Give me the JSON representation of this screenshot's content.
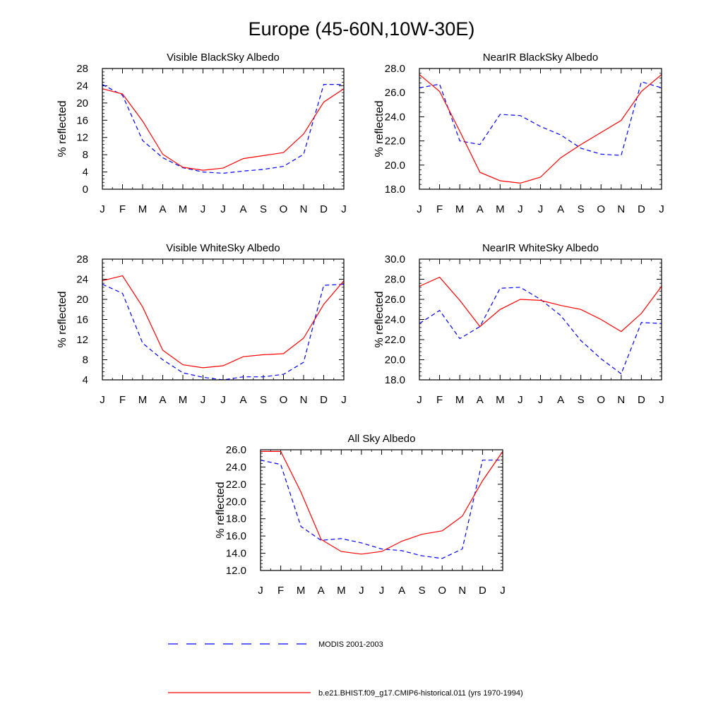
{
  "figure": {
    "title": "Europe (45-60N,10W-30E)"
  },
  "legend": {
    "position": "bottom",
    "entries": [
      {
        "label": "MODIS 2001-2003",
        "color": "#0000ff",
        "dashed": true
      },
      {
        "label": "b.e21.BHIST.f09_g17.CMIP6-historical.011 (yrs 1970-1994)",
        "color": "#ff0000",
        "dashed": false
      }
    ]
  },
  "chart_data": [
    {
      "type": "line",
      "title": "Visible BlackSky Albedo",
      "ylabel": "% reflected",
      "x": [
        "J",
        "F",
        "M",
        "A",
        "M",
        "J",
        "J",
        "A",
        "S",
        "O",
        "N",
        "D",
        "J"
      ],
      "ylim": [
        0,
        28
      ],
      "yticks": [
        "0",
        "4",
        "8",
        "12",
        "16",
        "20",
        "24",
        "28"
      ],
      "series": [
        {
          "name": "MODIS 2001-2003",
          "color": "#0000ff",
          "dashed": true,
          "values": [
            24.3,
            21.8,
            11.3,
            7.3,
            5.0,
            4.0,
            3.7,
            4.2,
            4.6,
            5.3,
            8.1,
            24.3,
            24.3
          ]
        },
        {
          "name": "b.e21.BHIST.f09_g17.CMIP6-historical.011 (yrs 1970-1994)",
          "color": "#ff0000",
          "dashed": false,
          "values": [
            23.3,
            22.1,
            15.8,
            8.1,
            5.1,
            4.4,
            4.9,
            7.1,
            7.8,
            8.5,
            12.8,
            20.2,
            23.3
          ]
        }
      ]
    },
    {
      "type": "line",
      "title": "NearIR BlackSky Albedo",
      "ylabel": "% reflected",
      "x": [
        "J",
        "F",
        "M",
        "A",
        "M",
        "J",
        "J",
        "A",
        "S",
        "O",
        "N",
        "D",
        "J"
      ],
      "ylim": [
        18,
        28
      ],
      "yticks": [
        "18.0",
        "20.0",
        "22.0",
        "24.0",
        "26.0",
        "28.0"
      ],
      "series": [
        {
          "name": "MODIS 2001-2003",
          "color": "#0000ff",
          "dashed": true,
          "values": [
            26.4,
            26.7,
            22.0,
            21.7,
            24.2,
            24.1,
            23.2,
            22.5,
            21.4,
            20.9,
            20.8,
            26.9,
            26.4
          ]
        },
        {
          "name": "b.e21.BHIST.f09_g17.CMIP6-historical.011 (yrs 1970-1994)",
          "color": "#ff0000",
          "dashed": false,
          "values": [
            27.5,
            26.1,
            22.8,
            19.4,
            18.7,
            18.5,
            19.0,
            20.6,
            21.7,
            22.7,
            23.7,
            26.1,
            27.5
          ]
        }
      ]
    },
    {
      "type": "line",
      "title": "Visible WhiteSky Albedo",
      "ylabel": "% reflected",
      "x": [
        "J",
        "F",
        "M",
        "A",
        "M",
        "J",
        "J",
        "A",
        "S",
        "O",
        "N",
        "D",
        "J"
      ],
      "ylim": [
        4,
        28
      ],
      "yticks": [
        "4",
        "8",
        "12",
        "16",
        "20",
        "24",
        "28"
      ],
      "series": [
        {
          "name": "MODIS 2001-2003",
          "color": "#0000ff",
          "dashed": true,
          "values": [
            23.0,
            21.2,
            11.3,
            8.0,
            5.4,
            4.5,
            4.0,
            4.6,
            4.6,
            5.1,
            7.5,
            22.8,
            23.0
          ]
        },
        {
          "name": "b.e21.BHIST.f09_g17.CMIP6-historical.011 (yrs 1970-1994)",
          "color": "#ff0000",
          "dashed": false,
          "values": [
            23.7,
            24.7,
            18.5,
            9.9,
            7.0,
            6.4,
            6.8,
            8.6,
            9.0,
            9.2,
            12.3,
            19.0,
            23.7
          ]
        }
      ]
    },
    {
      "type": "line",
      "title": "NearIR WhiteSky Albedo",
      "ylabel": "% reflected",
      "x": [
        "J",
        "F",
        "M",
        "A",
        "M",
        "J",
        "J",
        "A",
        "S",
        "O",
        "N",
        "D",
        "J"
      ],
      "ylim": [
        18,
        30
      ],
      "yticks": [
        "18.0",
        "20.0",
        "22.0",
        "24.0",
        "26.0",
        "28.0",
        "30.0"
      ],
      "series": [
        {
          "name": "MODIS 2001-2003",
          "color": "#0000ff",
          "dashed": true,
          "values": [
            23.6,
            24.9,
            22.1,
            23.3,
            27.1,
            27.2,
            26.0,
            24.4,
            21.9,
            20.1,
            18.6,
            23.7,
            23.6
          ]
        },
        {
          "name": "b.e21.BHIST.f09_g17.CMIP6-historical.011 (yrs 1970-1994)",
          "color": "#ff0000",
          "dashed": false,
          "values": [
            27.3,
            28.2,
            25.9,
            23.3,
            25.0,
            26.0,
            25.9,
            25.4,
            25.0,
            24.0,
            22.8,
            24.6,
            27.3
          ]
        }
      ]
    },
    {
      "type": "line",
      "title": "All Sky Albedo",
      "ylabel": "% reflected",
      "x": [
        "J",
        "F",
        "M",
        "A",
        "M",
        "J",
        "J",
        "A",
        "S",
        "O",
        "N",
        "D",
        "J"
      ],
      "ylim": [
        12,
        26
      ],
      "yticks": [
        "12.0",
        "14.0",
        "16.0",
        "18.0",
        "20.0",
        "22.0",
        "24.0",
        "26.0"
      ],
      "series": [
        {
          "name": "MODIS 2001-2003",
          "color": "#0000ff",
          "dashed": true,
          "values": [
            24.8,
            24.3,
            17.1,
            15.5,
            15.7,
            15.2,
            14.5,
            14.3,
            13.7,
            13.4,
            14.5,
            24.8,
            24.8
          ]
        },
        {
          "name": "b.e21.BHIST.f09_g17.CMIP6-historical.011 (yrs 1970-1994)",
          "color": "#ff0000",
          "dashed": false,
          "values": [
            25.8,
            25.8,
            21.1,
            15.6,
            14.2,
            13.9,
            14.2,
            15.4,
            16.2,
            16.6,
            18.3,
            22.4,
            25.8
          ]
        }
      ]
    }
  ]
}
